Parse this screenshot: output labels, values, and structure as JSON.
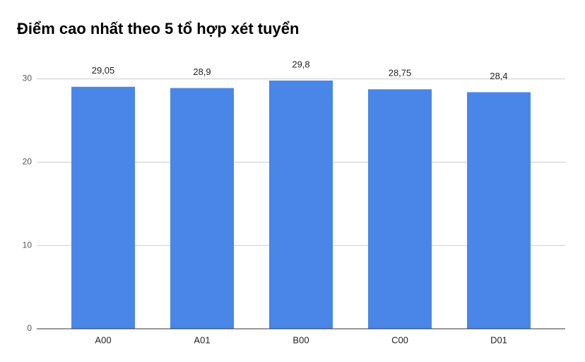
{
  "chart_data": {
    "type": "bar",
    "title": "Điểm cao nhất theo 5 tổ hợp xét tuyển",
    "categories": [
      "A00",
      "A01",
      "B00",
      "C00",
      "D01"
    ],
    "values": [
      29.05,
      28.9,
      29.8,
      28.75,
      28.4
    ],
    "value_labels": [
      "29,05",
      "28,9",
      "29,8",
      "28,75",
      "28,4"
    ],
    "color": "#4a86e8",
    "ylim": [
      0,
      32
    ],
    "yticks": [
      0,
      10,
      20,
      30
    ],
    "grid": true
  }
}
